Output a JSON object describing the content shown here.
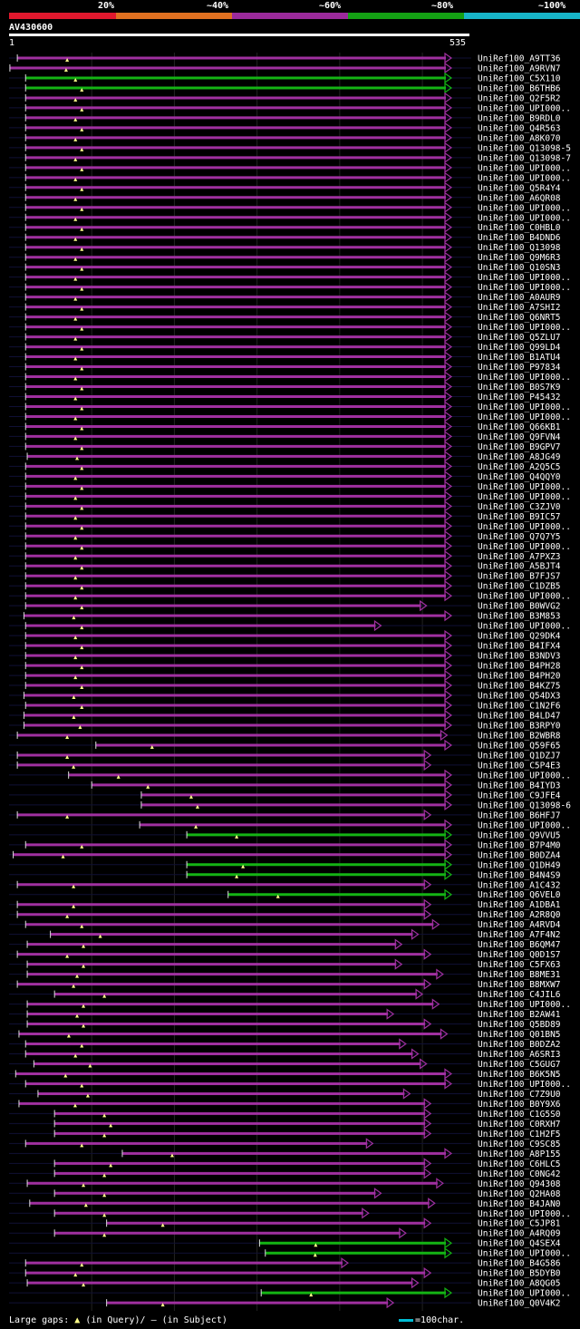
{
  "legend": {
    "labels": [
      "20%",
      "~40%",
      "~60%",
      "~80%",
      "~100%"
    ],
    "colors": [
      "#e0182d",
      "#e07020",
      "#9b2a9b",
      "#14a014",
      "#17b4c8"
    ]
  },
  "query": {
    "name": "AV430600",
    "start": "1",
    "end": "535"
  },
  "chart_data": {
    "type": "alignment",
    "query_length": 535,
    "hits": [
      {
        "name": "UniRef100_A9TT36",
        "start": 10,
        "end": 535,
        "identity": "~60%"
      },
      {
        "name": "UniRef100_A9RVN7",
        "start": 1,
        "end": 535,
        "identity": "~60%"
      },
      {
        "name": "UniRef100_C5X110",
        "start": 20,
        "end": 535,
        "identity": "~80%"
      },
      {
        "name": "UniRef100_B6THB6",
        "start": 20,
        "end": 535,
        "identity": "~80%"
      },
      {
        "name": "UniRef100_Q2F5R2",
        "start": 20,
        "end": 535,
        "identity": "~60%"
      },
      {
        "name": "UniRef100_UPI000..",
        "start": 20,
        "end": 535,
        "identity": "~60%"
      },
      {
        "name": "UniRef100_B9RDL0",
        "start": 20,
        "end": 535,
        "identity": "~60%"
      },
      {
        "name": "UniRef100_Q4R563",
        "start": 20,
        "end": 535,
        "identity": "~60%"
      },
      {
        "name": "UniRef100_A8K070",
        "start": 20,
        "end": 535,
        "identity": "~60%"
      },
      {
        "name": "UniRef100_Q13098-5",
        "start": 20,
        "end": 535,
        "identity": "~60%"
      },
      {
        "name": "UniRef100_Q13098-7",
        "start": 20,
        "end": 535,
        "identity": "~60%"
      },
      {
        "name": "UniRef100_UPI000..",
        "start": 20,
        "end": 535,
        "identity": "~60%"
      },
      {
        "name": "UniRef100_UPI000..",
        "start": 20,
        "end": 535,
        "identity": "~60%"
      },
      {
        "name": "UniRef100_Q5R4Y4",
        "start": 20,
        "end": 535,
        "identity": "~60%"
      },
      {
        "name": "UniRef100_A6QR08",
        "start": 20,
        "end": 535,
        "identity": "~60%"
      },
      {
        "name": "UniRef100_UPI000..",
        "start": 20,
        "end": 535,
        "identity": "~60%"
      },
      {
        "name": "UniRef100_UPI000..",
        "start": 20,
        "end": 535,
        "identity": "~60%"
      },
      {
        "name": "UniRef100_C0HBL0",
        "start": 20,
        "end": 535,
        "identity": "~60%"
      },
      {
        "name": "UniRef100_B4DND6",
        "start": 20,
        "end": 535,
        "identity": "~60%"
      },
      {
        "name": "UniRef100_Q13098",
        "start": 20,
        "end": 535,
        "identity": "~60%"
      },
      {
        "name": "UniRef100_Q9M6R3",
        "start": 20,
        "end": 535,
        "identity": "~60%"
      },
      {
        "name": "UniRef100_Q10SN3",
        "start": 20,
        "end": 535,
        "identity": "~60%"
      },
      {
        "name": "UniRef100_UPI000..",
        "start": 20,
        "end": 535,
        "identity": "~60%"
      },
      {
        "name": "UniRef100_UPI000..",
        "start": 20,
        "end": 535,
        "identity": "~60%"
      },
      {
        "name": "UniRef100_A0AUR9",
        "start": 20,
        "end": 535,
        "identity": "~60%"
      },
      {
        "name": "UniRef100_A7SHI2",
        "start": 20,
        "end": 535,
        "identity": "~60%"
      },
      {
        "name": "UniRef100_Q6NRT5",
        "start": 20,
        "end": 535,
        "identity": "~60%"
      },
      {
        "name": "UniRef100_UPI000..",
        "start": 20,
        "end": 535,
        "identity": "~60%"
      },
      {
        "name": "UniRef100_Q5ZLU7",
        "start": 20,
        "end": 535,
        "identity": "~60%"
      },
      {
        "name": "UniRef100_Q99LD4",
        "start": 20,
        "end": 535,
        "identity": "~60%"
      },
      {
        "name": "UniRef100_B1ATU4",
        "start": 20,
        "end": 535,
        "identity": "~60%"
      },
      {
        "name": "UniRef100_P97834",
        "start": 20,
        "end": 535,
        "identity": "~60%"
      },
      {
        "name": "UniRef100_UPI000..",
        "start": 20,
        "end": 535,
        "identity": "~60%"
      },
      {
        "name": "UniRef100_B0S7K9",
        "start": 20,
        "end": 535,
        "identity": "~60%"
      },
      {
        "name": "UniRef100_P45432",
        "start": 20,
        "end": 535,
        "identity": "~60%"
      },
      {
        "name": "UniRef100_UPI000..",
        "start": 20,
        "end": 535,
        "identity": "~60%"
      },
      {
        "name": "UniRef100_UPI000..",
        "start": 20,
        "end": 535,
        "identity": "~60%"
      },
      {
        "name": "UniRef100_Q66KB1",
        "start": 20,
        "end": 535,
        "identity": "~60%"
      },
      {
        "name": "UniRef100_Q9FVN4",
        "start": 20,
        "end": 535,
        "identity": "~60%"
      },
      {
        "name": "UniRef100_B9GPV7",
        "start": 20,
        "end": 535,
        "identity": "~60%"
      },
      {
        "name": "UniRef100_A8JG49",
        "start": 22,
        "end": 535,
        "identity": "~60%"
      },
      {
        "name": "UniRef100_A2Q5C5",
        "start": 20,
        "end": 535,
        "identity": "~60%"
      },
      {
        "name": "UniRef100_Q4QQY0",
        "start": 20,
        "end": 535,
        "identity": "~60%"
      },
      {
        "name": "UniRef100_UPI000..",
        "start": 20,
        "end": 535,
        "identity": "~60%"
      },
      {
        "name": "UniRef100_UPI000..",
        "start": 20,
        "end": 535,
        "identity": "~60%"
      },
      {
        "name": "UniRef100_C3ZJV0",
        "start": 20,
        "end": 535,
        "identity": "~60%"
      },
      {
        "name": "UniRef100_B9IC57",
        "start": 20,
        "end": 535,
        "identity": "~60%"
      },
      {
        "name": "UniRef100_UPI000..",
        "start": 20,
        "end": 535,
        "identity": "~60%"
      },
      {
        "name": "UniRef100_Q7Q7Y5",
        "start": 20,
        "end": 535,
        "identity": "~60%"
      },
      {
        "name": "UniRef100_UPI000..",
        "start": 20,
        "end": 535,
        "identity": "~60%"
      },
      {
        "name": "UniRef100_A7PXZ3",
        "start": 20,
        "end": 535,
        "identity": "~60%"
      },
      {
        "name": "UniRef100_A5BJT4",
        "start": 20,
        "end": 535,
        "identity": "~60%"
      },
      {
        "name": "UniRef100_B7FJS7",
        "start": 20,
        "end": 535,
        "identity": "~60%"
      },
      {
        "name": "UniRef100_C1DZB5",
        "start": 20,
        "end": 535,
        "identity": "~60%"
      },
      {
        "name": "UniRef100_UPI000..",
        "start": 20,
        "end": 535,
        "identity": "~60%"
      },
      {
        "name": "UniRef100_B0WVG2",
        "start": 20,
        "end": 505,
        "identity": "~60%"
      },
      {
        "name": "UniRef100_B3M853",
        "start": 18,
        "end": 535,
        "identity": "~60%"
      },
      {
        "name": "UniRef100_UPI000..",
        "start": 20,
        "end": 450,
        "identity": "~60%"
      },
      {
        "name": "UniRef100_Q29DK4",
        "start": 20,
        "end": 535,
        "identity": "~60%"
      },
      {
        "name": "UniRef100_B4IFX4",
        "start": 20,
        "end": 535,
        "identity": "~60%"
      },
      {
        "name": "UniRef100_B3NDV3",
        "start": 20,
        "end": 535,
        "identity": "~60%"
      },
      {
        "name": "UniRef100_B4PH28",
        "start": 20,
        "end": 535,
        "identity": "~60%"
      },
      {
        "name": "UniRef100_B4PH20",
        "start": 20,
        "end": 535,
        "identity": "~60%"
      },
      {
        "name": "UniRef100_B4KZ75",
        "start": 20,
        "end": 535,
        "identity": "~60%"
      },
      {
        "name": "UniRef100_Q54DX3",
        "start": 18,
        "end": 535,
        "identity": "~60%"
      },
      {
        "name": "UniRef100_C1N2F6",
        "start": 20,
        "end": 535,
        "identity": "~60%"
      },
      {
        "name": "UniRef100_B4LD47",
        "start": 18,
        "end": 535,
        "identity": "~60%"
      },
      {
        "name": "UniRef100_B3RPY0",
        "start": 18,
        "end": 535,
        "identity": "~60%"
      },
      {
        "name": "UniRef100_B2WBR8",
        "start": 10,
        "end": 530,
        "identity": "~60%"
      },
      {
        "name": "UniRef100_Q59F65",
        "start": 105,
        "end": 535,
        "identity": "~60%"
      },
      {
        "name": "UniRef100_Q1DZJ7",
        "start": 10,
        "end": 510,
        "identity": "~60%"
      },
      {
        "name": "UniRef100_C5P4E3",
        "start": 10,
        "end": 510,
        "identity": "~60%"
      },
      {
        "name": "UniRef100_UPI000..",
        "start": 72,
        "end": 535,
        "identity": "~60%"
      },
      {
        "name": "UniRef100_B4IYD3",
        "start": 100,
        "end": 535,
        "identity": "~60%"
      },
      {
        "name": "UniRef100_C9JFE4",
        "start": 160,
        "end": 535,
        "identity": "~60%"
      },
      {
        "name": "UniRef100_Q13098-6",
        "start": 160,
        "end": 535,
        "identity": "~60%"
      },
      {
        "name": "UniRef100_B6HFJ7",
        "start": 10,
        "end": 510,
        "identity": "~60%"
      },
      {
        "name": "UniRef100_UPI000..",
        "start": 158,
        "end": 535,
        "identity": "~60%"
      },
      {
        "name": "UniRef100_Q9VVU5",
        "start": 215,
        "end": 535,
        "identity": "~80%"
      },
      {
        "name": "UniRef100_B7P4M0",
        "start": 20,
        "end": 535,
        "identity": "~60%"
      },
      {
        "name": "UniRef100_B0DZA4",
        "start": 5,
        "end": 535,
        "identity": "~60%"
      },
      {
        "name": "UniRef100_Q1DH49",
        "start": 215,
        "end": 535,
        "identity": "~80%"
      },
      {
        "name": "UniRef100_B4N4S9",
        "start": 215,
        "end": 535,
        "identity": "~80%"
      },
      {
        "name": "UniRef100_A1C432",
        "start": 10,
        "end": 510,
        "identity": "~60%"
      },
      {
        "name": "UniRef100_Q6VEL0",
        "start": 265,
        "end": 535,
        "identity": "~80%"
      },
      {
        "name": "UniRef100_A1DBA1",
        "start": 10,
        "end": 510,
        "identity": "~60%"
      },
      {
        "name": "UniRef100_A2R8Q0",
        "start": 10,
        "end": 510,
        "identity": "~60%"
      },
      {
        "name": "UniRef100_A4RVD4",
        "start": 20,
        "end": 520,
        "identity": "~60%"
      },
      {
        "name": "UniRef100_A7F4N2",
        "start": 50,
        "end": 495,
        "identity": "~60%"
      },
      {
        "name": "UniRef100_B6QM47",
        "start": 22,
        "end": 475,
        "identity": "~60%"
      },
      {
        "name": "UniRef100_Q0D1S7",
        "start": 10,
        "end": 510,
        "identity": "~60%"
      },
      {
        "name": "UniRef100_C5FX63",
        "start": 22,
        "end": 475,
        "identity": "~60%"
      },
      {
        "name": "UniRef100_B8ME31",
        "start": 22,
        "end": 525,
        "identity": "~60%"
      },
      {
        "name": "UniRef100_B8MXW7",
        "start": 10,
        "end": 510,
        "identity": "~60%"
      },
      {
        "name": "UniRef100_C4JIL6",
        "start": 55,
        "end": 500,
        "identity": "~60%"
      },
      {
        "name": "UniRef100_UPI000..",
        "start": 22,
        "end": 520,
        "identity": "~60%"
      },
      {
        "name": "UniRef100_B2AW41",
        "start": 22,
        "end": 465,
        "identity": "~60%"
      },
      {
        "name": "UniRef100_Q5BD89",
        "start": 22,
        "end": 510,
        "identity": "~60%"
      },
      {
        "name": "UniRef100_Q01BN5",
        "start": 12,
        "end": 530,
        "identity": "~60%"
      },
      {
        "name": "UniRef100_B0DZA2",
        "start": 20,
        "end": 480,
        "identity": "~60%"
      },
      {
        "name": "UniRef100_A6SRI3",
        "start": 20,
        "end": 495,
        "identity": "~60%"
      },
      {
        "name": "UniRef100_C5GUG7",
        "start": 30,
        "end": 505,
        "identity": "~60%"
      },
      {
        "name": "UniRef100_B6K5N5",
        "start": 8,
        "end": 535,
        "identity": "~60%"
      },
      {
        "name": "UniRef100_UPI000..",
        "start": 20,
        "end": 535,
        "identity": "~60%"
      },
      {
        "name": "UniRef100_C7Z9U0",
        "start": 35,
        "end": 485,
        "identity": "~60%"
      },
      {
        "name": "UniRef100_B0Y9X6",
        "start": 12,
        "end": 510,
        "identity": "~60%"
      },
      {
        "name": "UniRef100_C1G5S0",
        "start": 55,
        "end": 510,
        "identity": "~60%"
      },
      {
        "name": "UniRef100_C0RXH7",
        "start": 55,
        "end": 510,
        "identity": "~60%"
      },
      {
        "name": "UniRef100_C1H2F5",
        "start": 55,
        "end": 510,
        "identity": "~60%"
      },
      {
        "name": "UniRef100_C9SC85",
        "start": 20,
        "end": 440,
        "identity": "~60%"
      },
      {
        "name": "UniRef100_A8P155",
        "start": 137,
        "end": 535,
        "identity": "~60%"
      },
      {
        "name": "UniRef100_C6HLC5",
        "start": 55,
        "end": 510,
        "identity": "~60%"
      },
      {
        "name": "UniRef100_C0NG42",
        "start": 55,
        "end": 510,
        "identity": "~60%"
      },
      {
        "name": "UniRef100_Q94308",
        "start": 22,
        "end": 525,
        "identity": "~60%"
      },
      {
        "name": "UniRef100_Q2HA08",
        "start": 55,
        "end": 450,
        "identity": "~60%"
      },
      {
        "name": "UniRef100_B4JAN0",
        "start": 25,
        "end": 515,
        "identity": "~60%"
      },
      {
        "name": "UniRef100_UPI000..",
        "start": 55,
        "end": 435,
        "identity": "~60%"
      },
      {
        "name": "UniRef100_C5JP81",
        "start": 118,
        "end": 510,
        "identity": "~60%"
      },
      {
        "name": "UniRef100_A4RQ09",
        "start": 55,
        "end": 480,
        "identity": "~60%"
      },
      {
        "name": "UniRef100_Q4SEX4",
        "start": 303,
        "end": 535,
        "identity": "~80%"
      },
      {
        "name": "UniRef100_UPI000..",
        "start": 310,
        "end": 535,
        "identity": "~80%"
      },
      {
        "name": "UniRef100_B4G586",
        "start": 20,
        "end": 410,
        "identity": "~60%"
      },
      {
        "name": "UniRef100_B5DYB0",
        "start": 20,
        "end": 510,
        "identity": "~60%"
      },
      {
        "name": "UniRef100_A8QG05",
        "start": 22,
        "end": 495,
        "identity": "~60%"
      },
      {
        "name": "UniRef100_UPI000..",
        "start": 305,
        "end": 535,
        "identity": "~80%"
      },
      {
        "name": "UniRef100_Q0V4K2",
        "start": 118,
        "end": 465,
        "identity": "~60%"
      }
    ]
  },
  "footer": {
    "gaps_label": "Large gaps: ",
    "in_query": "(in Query)/",
    "dash": "–",
    "in_subject": " (in Subject)",
    "scale_label": "=100char."
  }
}
